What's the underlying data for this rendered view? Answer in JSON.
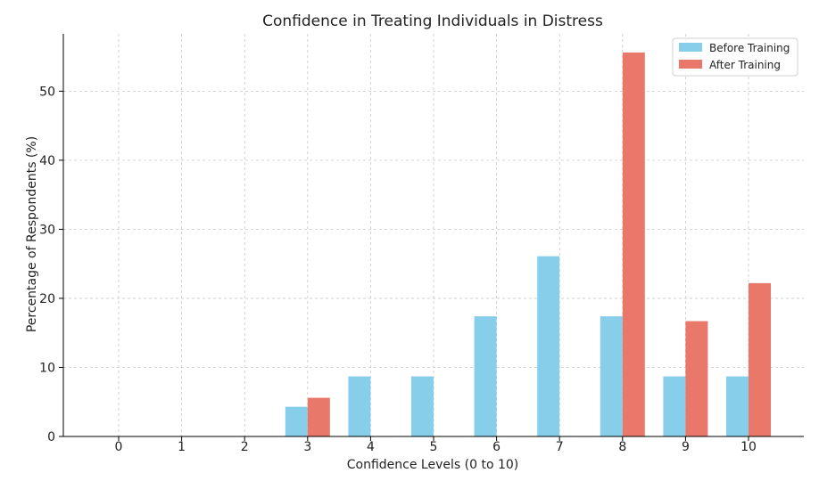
{
  "chart_data": {
    "type": "bar",
    "title": "Confidence in Treating Individuals in Distress",
    "xlabel": "Confidence Levels (0 to 10)",
    "ylabel": "Percentage of Respondents (%)",
    "categories": [
      "0",
      "1",
      "2",
      "3",
      "4",
      "5",
      "6",
      "7",
      "8",
      "9",
      "10"
    ],
    "series": [
      {
        "name": "Before Training",
        "color": "#87CEEB",
        "values": [
          0,
          0,
          0,
          4.3,
          8.7,
          8.7,
          17.4,
          26.1,
          17.4,
          8.7,
          8.7
        ]
      },
      {
        "name": "After Training",
        "color": "#E9776A",
        "values": [
          0,
          0,
          0,
          5.6,
          0,
          0,
          0,
          0,
          55.6,
          16.7,
          22.2
        ]
      }
    ],
    "ylim": [
      0,
      58.3
    ],
    "yticks": [
      0,
      10,
      20,
      30,
      40,
      50
    ],
    "grid": true,
    "legend_position": "top-right"
  }
}
